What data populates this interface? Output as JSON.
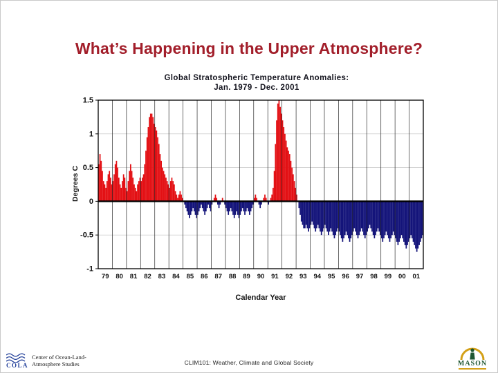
{
  "slide": {
    "title": "What’s Happening in the Upper Atmosphere?",
    "title_color": "#a21e2a",
    "background": "#ffffff"
  },
  "chart": {
    "title_line1": "Global  Stratospheric Temperature Anomalies:",
    "title_line2": "Jan. 1979 -  Dec. 2001",
    "ylabel": "Degrees C",
    "xlabel": "Calendar Year"
  },
  "chart_data": {
    "type": "bar",
    "title": "Global Stratospheric Temperature Anomalies: Jan. 1979 - Dec. 2001",
    "xlabel": "Calendar Year",
    "ylabel": "Degrees C",
    "ylim": [
      -1,
      1.5
    ],
    "y_ticks": [
      1.5,
      1,
      0.5,
      0,
      -0.5,
      -1
    ],
    "grid": "vertical line at each year, light horizontal lines at ticks",
    "legend": "none",
    "positive_color": "#e31014",
    "negative_color": "#14147a",
    "categories": [
      "79",
      "80",
      "81",
      "82",
      "83",
      "84",
      "85",
      "86",
      "87",
      "88",
      "89",
      "90",
      "91",
      "92",
      "93",
      "94",
      "95",
      "96",
      "97",
      "98",
      "99",
      "00",
      "01"
    ],
    "series_note": "monthly temperature anomaly (deg C), Jan-Dec per year, estimated from plot",
    "monthly_values": [
      [
        0.55,
        0.7,
        0.6,
        0.45,
        0.3,
        0.25,
        0.2,
        0.3,
        0.4,
        0.45,
        0.35,
        0.25
      ],
      [
        0.3,
        0.4,
        0.55,
        0.6,
        0.5,
        0.35,
        0.25,
        0.2,
        0.3,
        0.4,
        0.35,
        0.2
      ],
      [
        0.15,
        0.3,
        0.45,
        0.55,
        0.45,
        0.35,
        0.25,
        0.2,
        0.15,
        0.25,
        0.3,
        0.35
      ],
      [
        0.3,
        0.35,
        0.4,
        0.55,
        0.75,
        0.95,
        1.1,
        1.25,
        1.3,
        1.3,
        1.25,
        1.15
      ],
      [
        1.1,
        1.05,
        0.95,
        0.85,
        0.7,
        0.6,
        0.5,
        0.45,
        0.4,
        0.35,
        0.3,
        0.25
      ],
      [
        0.2,
        0.3,
        0.35,
        0.3,
        0.25,
        0.15,
        0.1,
        0.05,
        0.1,
        0.15,
        0.1,
        0.05
      ],
      [
        0.0,
        -0.05,
        -0.1,
        -0.15,
        -0.2,
        -0.25,
        -0.2,
        -0.15,
        -0.1,
        -0.15,
        -0.2,
        -0.25
      ],
      [
        -0.2,
        -0.15,
        -0.1,
        -0.05,
        -0.1,
        -0.15,
        -0.2,
        -0.15,
        -0.1,
        -0.05,
        -0.1,
        -0.15
      ],
      [
        -0.05,
        0.0,
        0.05,
        0.1,
        0.05,
        -0.05,
        -0.1,
        -0.05,
        0.0,
        0.05,
        0.0,
        -0.05
      ],
      [
        -0.1,
        -0.15,
        -0.2,
        -0.15,
        -0.1,
        -0.15,
        -0.2,
        -0.25,
        -0.2,
        -0.15,
        -0.2,
        -0.25
      ],
      [
        -0.2,
        -0.15,
        -0.1,
        -0.15,
        -0.2,
        -0.15,
        -0.1,
        -0.15,
        -0.2,
        -0.15,
        -0.1,
        -0.05
      ],
      [
        0.05,
        0.1,
        0.05,
        0.0,
        -0.05,
        -0.1,
        -0.05,
        0.0,
        0.05,
        0.1,
        0.05,
        0.0
      ],
      [
        -0.05,
        0.0,
        0.05,
        0.1,
        0.2,
        0.45,
        0.85,
        1.2,
        1.45,
        1.5,
        1.4,
        1.3
      ],
      [
        1.2,
        1.1,
        1.0,
        0.9,
        0.8,
        0.75,
        0.7,
        0.6,
        0.5,
        0.4,
        0.3,
        0.2
      ],
      [
        0.1,
        0.0,
        -0.1,
        -0.2,
        -0.3,
        -0.35,
        -0.4,
        -0.4,
        -0.35,
        -0.4,
        -0.45,
        -0.4
      ],
      [
        -0.35,
        -0.3,
        -0.35,
        -0.4,
        -0.45,
        -0.4,
        -0.35,
        -0.4,
        -0.45,
        -0.5,
        -0.45,
        -0.4
      ],
      [
        -0.35,
        -0.4,
        -0.45,
        -0.5,
        -0.45,
        -0.4,
        -0.45,
        -0.5,
        -0.55,
        -0.5,
        -0.45,
        -0.4
      ],
      [
        -0.45,
        -0.5,
        -0.55,
        -0.6,
        -0.55,
        -0.5,
        -0.45,
        -0.5,
        -0.55,
        -0.6,
        -0.55,
        -0.5
      ],
      [
        -0.45,
        -0.4,
        -0.45,
        -0.5,
        -0.55,
        -0.5,
        -0.45,
        -0.4,
        -0.45,
        -0.5,
        -0.55,
        -0.5
      ],
      [
        -0.45,
        -0.4,
        -0.35,
        -0.4,
        -0.45,
        -0.5,
        -0.55,
        -0.5,
        -0.45,
        -0.4,
        -0.45,
        -0.5
      ],
      [
        -0.55,
        -0.6,
        -0.55,
        -0.5,
        -0.45,
        -0.5,
        -0.55,
        -0.6,
        -0.55,
        -0.5,
        -0.45,
        -0.5
      ],
      [
        -0.55,
        -0.6,
        -0.65,
        -0.6,
        -0.55,
        -0.5,
        -0.55,
        -0.6,
        -0.65,
        -0.7,
        -0.65,
        -0.6
      ],
      [
        -0.55,
        -0.5,
        -0.55,
        -0.6,
        -0.65,
        -0.7,
        -0.75,
        -0.7,
        -0.65,
        -0.6,
        -0.55,
        -0.5
      ]
    ]
  },
  "footer": {
    "left_logo_text": "COLA",
    "org_line1": "Center of Ocean-Land-",
    "org_line2": "Atmosphere Studies",
    "center_text": "CLIM101: Weather, Climate and Global Society",
    "right_logo_text": "MASON"
  }
}
